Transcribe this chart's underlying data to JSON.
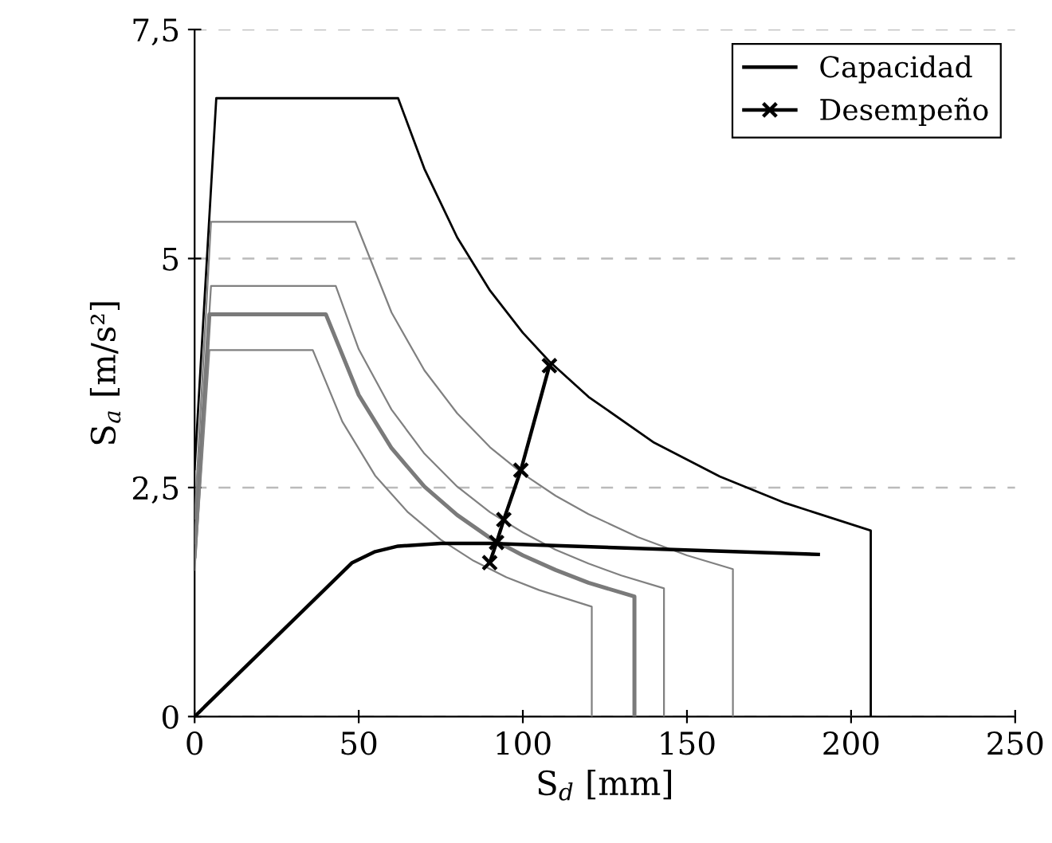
{
  "chart_data": {
    "type": "line",
    "xlabel": "S$_{d}$ [mm]",
    "ylabel": "S$_{a}$ [m/s²]",
    "xlim": [
      0,
      250
    ],
    "xticks": [
      0,
      50,
      100,
      150,
      200,
      250
    ],
    "ylim": [
      0,
      7.5
    ],
    "yticks": [
      {
        "value": 0,
        "label": "0"
      },
      {
        "value": 2.5,
        "label": "2,5"
      },
      {
        "value": 5,
        "label": "5"
      },
      {
        "value": 7.5,
        "label": "7,5"
      }
    ],
    "grid": "y",
    "legend": "top right",
    "marker": "none",
    "line_style": "solid",
    "series": [
      {
        "color": "#000000",
        "x": [
          0,
          6.6,
          62,
          70,
          80,
          90,
          100,
          108,
          120,
          140,
          160,
          180,
          206,
          206
        ],
        "values": [
          2.7,
          6.75,
          6.75,
          5.98,
          5.23,
          4.65,
          4.19,
          3.88,
          3.49,
          2.99,
          2.62,
          2.33,
          2.03,
          0
        ]
      },
      {
        "color": "#808080",
        "x": [
          0,
          5,
          49,
          60,
          70,
          80,
          90,
          100,
          110,
          120,
          135,
          150,
          164,
          164
        ],
        "values": [
          2.16,
          5.4,
          5.4,
          4.41,
          3.78,
          3.31,
          2.94,
          2.65,
          2.41,
          2.21,
          1.96,
          1.76,
          1.61,
          0
        ]
      },
      {
        "color": "#808080",
        "x": [
          0,
          5,
          43,
          50,
          60,
          70,
          80,
          90,
          100,
          110,
          120,
          130,
          143,
          143
        ],
        "values": [
          1.89,
          4.7,
          4.7,
          4.01,
          3.35,
          2.87,
          2.51,
          2.23,
          2.01,
          1.82,
          1.67,
          1.54,
          1.4,
          0
        ]
      },
      {
        "color": "#7a7a7a",
        "x": [
          0,
          4.5,
          40,
          50,
          60,
          70,
          80,
          90,
          100,
          110,
          120,
          134,
          134
        ],
        "values": [
          1.75,
          4.39,
          4.39,
          3.51,
          2.93,
          2.51,
          2.2,
          1.95,
          1.76,
          1.6,
          1.46,
          1.31,
          0
        ]
      },
      {
        "color": "#808080",
        "x": [
          0,
          4.5,
          36,
          45,
          55,
          65,
          75,
          85,
          95,
          105,
          121,
          121
        ],
        "values": [
          1.6,
          4.0,
          4.0,
          3.22,
          2.63,
          2.23,
          1.93,
          1.7,
          1.52,
          1.38,
          1.2,
          0
        ]
      },
      {
        "name": "Capacidad",
        "color": "#000000",
        "x": [
          0,
          48,
          55,
          62,
          75,
          90,
          190
        ],
        "values": [
          0,
          1.68,
          1.8,
          1.86,
          1.89,
          1.89,
          1.77
        ]
      },
      {
        "name": "Desempeño",
        "color": "#000000",
        "marker": "cross",
        "x": [
          89.9,
          92.0,
          94.2,
          99.4,
          108.1
        ],
        "values": [
          1.68,
          1.9,
          2.15,
          2.69,
          3.83
        ]
      }
    ]
  }
}
